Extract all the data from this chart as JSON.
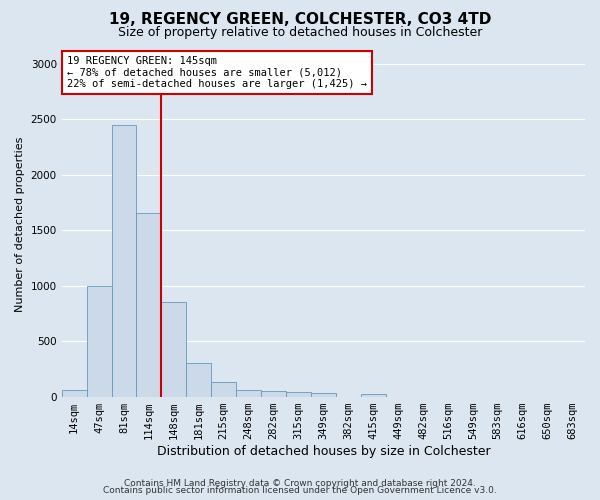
{
  "title1": "19, REGENCY GREEN, COLCHESTER, CO3 4TD",
  "title2": "Size of property relative to detached houses in Colchester",
  "xlabel": "Distribution of detached houses by size in Colchester",
  "ylabel": "Number of detached properties",
  "bar_values": [
    60,
    1000,
    2450,
    1650,
    850,
    300,
    130,
    55,
    50,
    45,
    35,
    0,
    25,
    0,
    0,
    0,
    0,
    0,
    0,
    0,
    0
  ],
  "bin_labels": [
    "14sqm",
    "47sqm",
    "81sqm",
    "114sqm",
    "148sqm",
    "181sqm",
    "215sqm",
    "248sqm",
    "282sqm",
    "315sqm",
    "349sqm",
    "382sqm",
    "415sqm",
    "449sqm",
    "482sqm",
    "516sqm",
    "549sqm",
    "583sqm",
    "616sqm",
    "650sqm",
    "683sqm"
  ],
  "bar_color": "#ccd9e8",
  "bar_edge_color": "#6699bb",
  "vline_x": 3.5,
  "vline_color": "#cc0000",
  "annotation_label": "19 REGENCY GREEN: 145sqm",
  "annotation_line1": "← 78% of detached houses are smaller (5,012)",
  "annotation_line2": "22% of semi-detached houses are larger (1,425) →",
  "annotation_box_color": "#ffffff",
  "annotation_box_edge": "#cc0000",
  "ylim": [
    0,
    3100
  ],
  "yticks": [
    0,
    500,
    1000,
    1500,
    2000,
    2500,
    3000
  ],
  "footer1": "Contains HM Land Registry data © Crown copyright and database right 2024.",
  "footer2": "Contains public sector information licensed under the Open Government Licence v3.0.",
  "bg_color": "#dce6f0",
  "plot_bg_color": "#dce6f0",
  "grid_color": "#ffffff",
  "title1_fontsize": 11,
  "title2_fontsize": 9,
  "ylabel_fontsize": 8,
  "xlabel_fontsize": 9,
  "tick_fontsize": 7.5,
  "footer_fontsize": 6.5
}
